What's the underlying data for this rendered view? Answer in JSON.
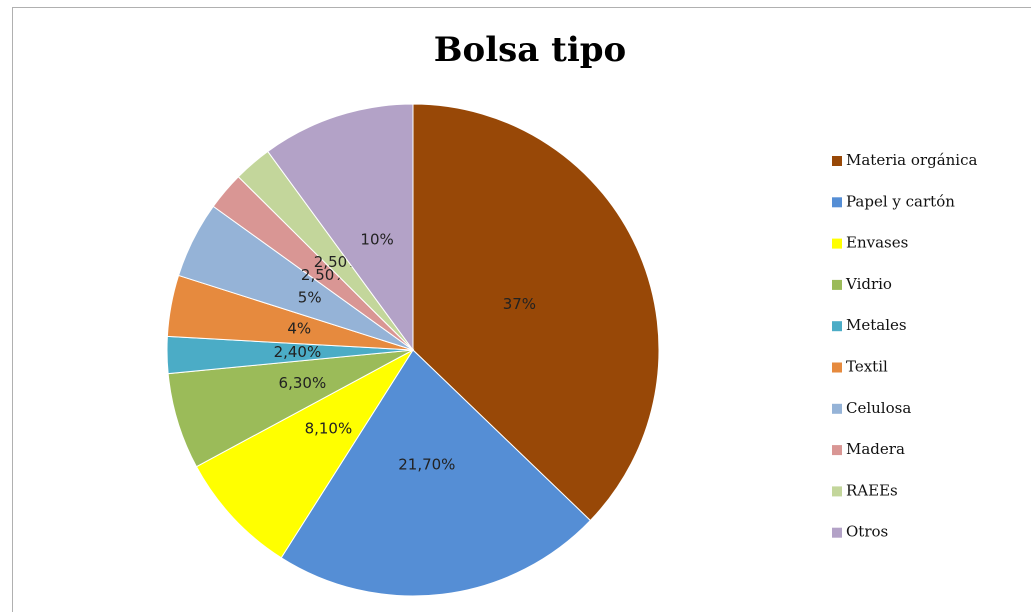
{
  "chart_data": {
    "type": "pie",
    "title": "Bolsa tipo",
    "categories": [
      "Materia orgánica",
      "Papel y cartón",
      "Envases",
      "Vidrio",
      "Metales",
      "Textil",
      "Celulosa",
      "Madera",
      "RAEEs",
      "Otros"
    ],
    "values": [
      37,
      21.7,
      8.1,
      6.3,
      2.4,
      4,
      5,
      2.5,
      2.5,
      10
    ],
    "value_labels": [
      "37%",
      "21,70%",
      "8,10%",
      "6,30%",
      "2,40%",
      "4%",
      "5%",
      "2,50%",
      "2,50%",
      "10%"
    ],
    "colors": [
      "#984807",
      "#558ed5",
      "#ffff00",
      "#9bbb59",
      "#4bacc6",
      "#e68a3e",
      "#95b3d7",
      "#d99694",
      "#c3d69b",
      "#b3a2c7"
    ],
    "legend": "right"
  }
}
